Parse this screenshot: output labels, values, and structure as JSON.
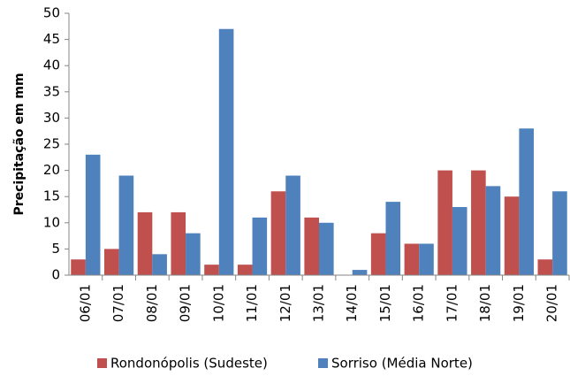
{
  "chart_data": {
    "type": "bar",
    "y_label": "Precipitação em mm",
    "categories": [
      "06/01",
      "07/01",
      "08/01",
      "09/01",
      "10/01",
      "11/01",
      "12/01",
      "13/01",
      "14/01",
      "15/01",
      "16/01",
      "17/01",
      "18/01",
      "19/01",
      "20/01"
    ],
    "series": [
      {
        "name": "Rondonópolis (Sudeste)",
        "color": "#c0504d",
        "values": [
          3,
          5,
          12,
          12,
          2,
          2,
          16,
          11,
          0,
          8,
          6,
          20,
          20,
          15,
          3
        ]
      },
      {
        "name": "Sorriso (Média Norte)",
        "color": "#4f81bd",
        "values": [
          23,
          19,
          4,
          8,
          47,
          11,
          19,
          10,
          1,
          14,
          6,
          13,
          17,
          28,
          16
        ]
      }
    ],
    "ylim": [
      0,
      50
    ],
    "yticks": [
      0,
      5,
      10,
      15,
      20,
      25,
      30,
      35,
      40,
      45,
      50
    ],
    "grid": false,
    "legend": "bottom"
  }
}
